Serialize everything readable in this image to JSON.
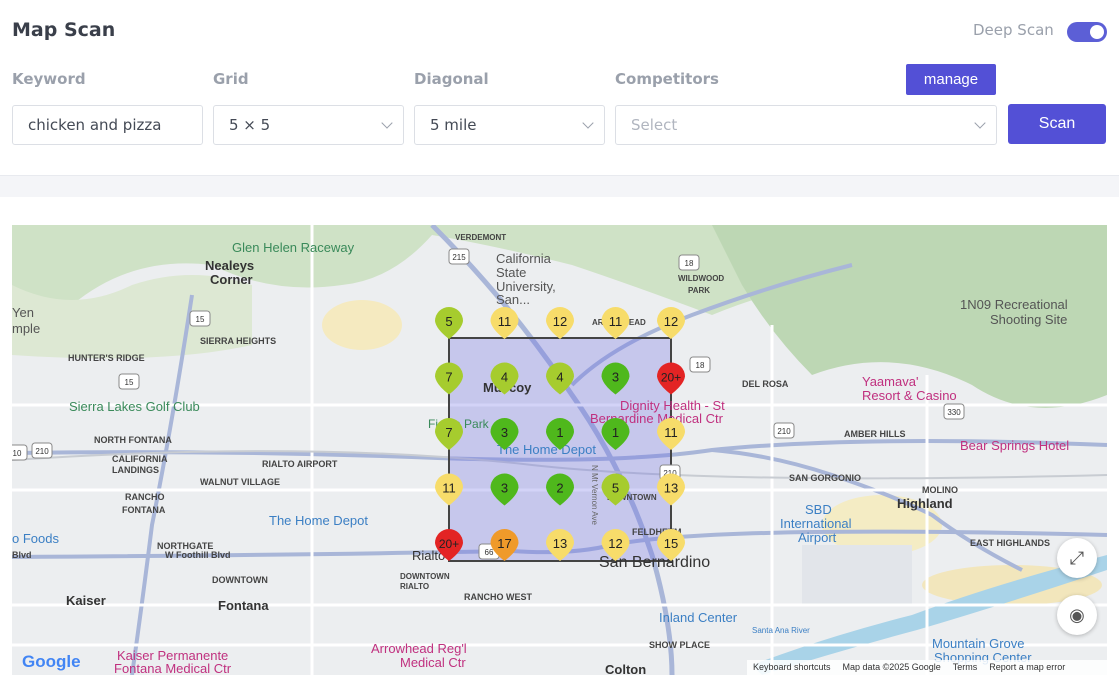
{
  "header": {
    "title": "Map Scan",
    "deep_scan_label": "Deep Scan",
    "deep_scan_on": true
  },
  "form": {
    "keyword_label": "Keyword",
    "keyword_value": "chicken and pizza",
    "grid_label": "Grid",
    "grid_value": "5 × 5",
    "diagonal_label": "Diagonal",
    "diagonal_value": "5 mile",
    "competitors_label": "Competitors",
    "competitors_placeholder": "Select",
    "manage_label": "manage",
    "scan_label": "Scan"
  },
  "map": {
    "rank_colors": {
      "green": "#4fb81c",
      "lightgreen": "#a6cc2e",
      "yellow": "#f7dc6a",
      "orange": "#ef9a2a",
      "red": "#e32424"
    },
    "grid_ranks": [
      [
        "5",
        "11",
        "12",
        "11",
        "12"
      ],
      [
        "7",
        "4",
        "4",
        "3",
        "20+"
      ],
      [
        "7",
        "3",
        "1",
        "1",
        "11"
      ],
      [
        "11",
        "3",
        "2",
        "5",
        "13"
      ],
      [
        "20+",
        "17",
        "13",
        "12",
        "15"
      ]
    ],
    "labels": [
      {
        "t": "Glen Helen Raceway"
      },
      {
        "t": "Nealeys"
      },
      {
        "t": "Corner"
      },
      {
        "t": "VERDEMONT"
      },
      {
        "t": "California"
      },
      {
        "t": "State"
      },
      {
        "t": "University,"
      },
      {
        "t": "San..."
      },
      {
        "t": "WILDWOOD"
      },
      {
        "t": "PARK"
      },
      {
        "t": "1N09 Recreational"
      },
      {
        "t": "Shooting Site"
      },
      {
        "t": "Yen"
      },
      {
        "t": "mple"
      },
      {
        "t": "HUNTER'S RIDGE"
      },
      {
        "t": "SIERRA HEIGHTS"
      },
      {
        "t": "ARROWHEAD"
      },
      {
        "t": "DEL ROSA"
      },
      {
        "t": "Yaamava'"
      },
      {
        "t": "Resort & Casino"
      },
      {
        "t": "Sierra Lakes Golf Club"
      },
      {
        "t": "Muscoy"
      },
      {
        "t": "Dignity Health - St"
      },
      {
        "t": "Bernardine Medical Ctr"
      },
      {
        "t": "NORTH FONTANA"
      },
      {
        "t": "Fiesta Park"
      },
      {
        "t": "AMBER HILLS"
      },
      {
        "t": "Bear Springs Hotel"
      },
      {
        "t": "CALIFORNIA"
      },
      {
        "t": "LANDINGS"
      },
      {
        "t": "RIALTO AIRPORT"
      },
      {
        "t": "The Home Depot"
      },
      {
        "t": "N Mt Vernon Ave"
      },
      {
        "t": "WALNUT VILLAGE"
      },
      {
        "t": "SAN GORGONIO"
      },
      {
        "t": "Highland"
      },
      {
        "t": "MOLINO"
      },
      {
        "t": "RANCHO"
      },
      {
        "t": "FONTANA"
      },
      {
        "t": "DOWNTOWN"
      },
      {
        "t": "The Home Depot"
      },
      {
        "t": "SBD"
      },
      {
        "t": "International"
      },
      {
        "t": "Airport"
      },
      {
        "t": "o Foods"
      },
      {
        "t": "NORTHGATE"
      },
      {
        "t": "Blvd"
      },
      {
        "t": "W Foothill Blvd"
      },
      {
        "t": "Rialto"
      },
      {
        "t": "FELDHEYM"
      },
      {
        "t": "San Bernardino"
      },
      {
        "t": "EAST HIGHLANDS"
      },
      {
        "t": "DOWNTOWN"
      },
      {
        "t": "DOWNTOWN"
      },
      {
        "t": "RIALTO"
      },
      {
        "t": "Kaiser"
      },
      {
        "t": "Fontana"
      },
      {
        "t": "RANCHO WEST"
      },
      {
        "t": "Inland Center"
      },
      {
        "t": "SHOW PLACE"
      },
      {
        "t": "Santa Ana River"
      },
      {
        "t": "Kaiser Permanente"
      },
      {
        "t": "Fontana Medical Ctr"
      },
      {
        "t": "Arrowhead Reg'l"
      },
      {
        "t": "Medical Ctr"
      },
      {
        "t": "Colton"
      },
      {
        "t": "Mountain Grove"
      },
      {
        "t": "Shopping Center"
      }
    ],
    "shields": [
      "215",
      "18",
      "15",
      "18",
      "15",
      "210",
      "330",
      "210",
      "210",
      "10",
      "66"
    ],
    "footer": {
      "logo": "Google",
      "shortcuts": "Keyboard shortcuts",
      "mapdata": "Map data ©2025 Google",
      "terms": "Terms",
      "report": "Report a map error"
    }
  }
}
